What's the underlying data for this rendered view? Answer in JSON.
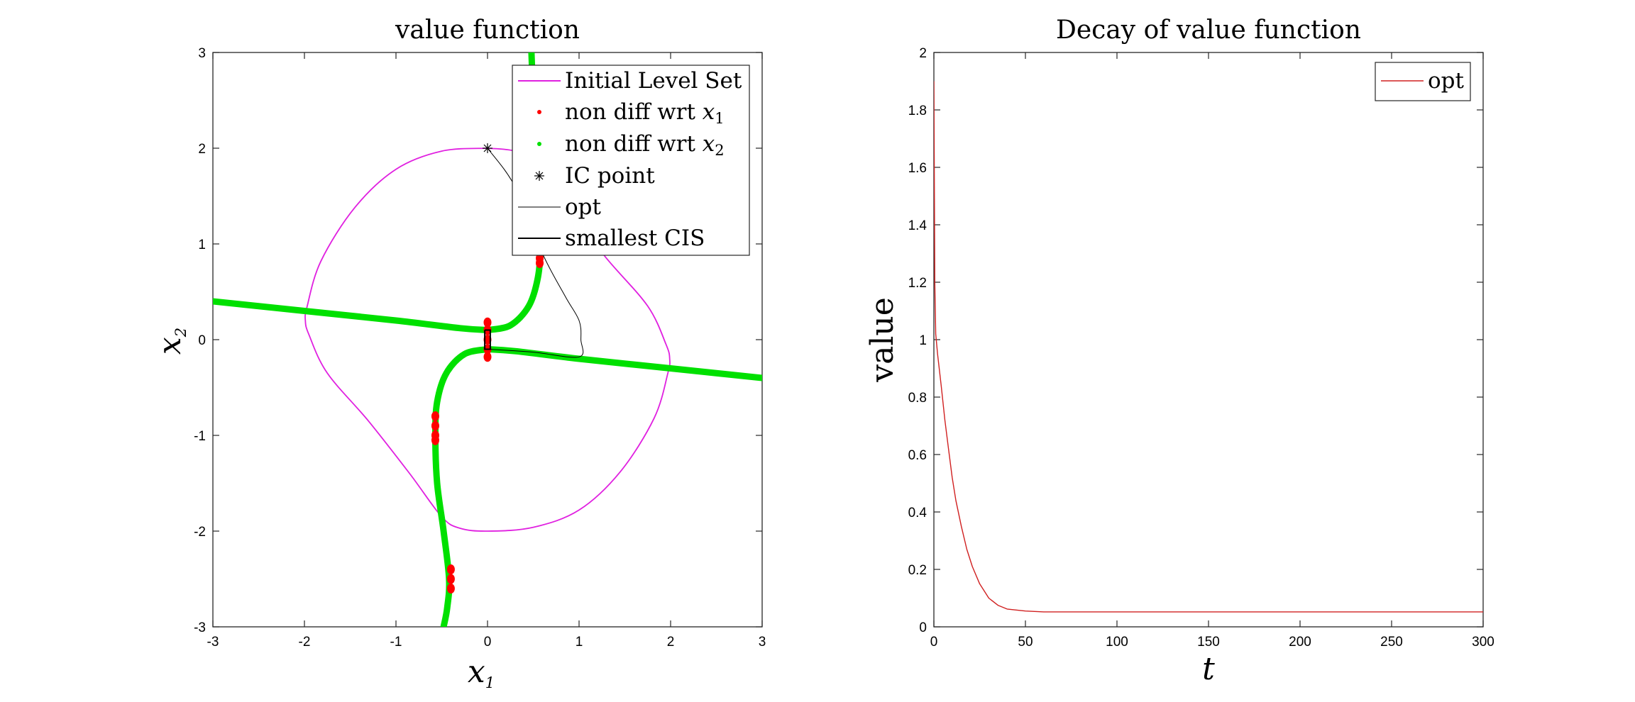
{
  "chart_data": [
    {
      "type": "line",
      "title": "value function",
      "xlabel": "x",
      "xlabel_sub": "1",
      "ylabel": "x",
      "ylabel_sub": "2",
      "xlim": [
        -3,
        3
      ],
      "ylim": [
        -3,
        3
      ],
      "xticks": [
        -3,
        -2,
        -1,
        0,
        1,
        2,
        3
      ],
      "yticks": [
        -3,
        -2,
        -1,
        0,
        1,
        2,
        3
      ],
      "legend": {
        "position": "top-right",
        "entries": [
          {
            "label": "Initial Level Set",
            "color": "#e020e0",
            "marker": "line"
          },
          {
            "label": "non diff wrt ",
            "math": "x",
            "sub": "1",
            "color": "#ff0000",
            "marker": "dot"
          },
          {
            "label": "non diff wrt ",
            "math": "x",
            "sub": "2",
            "color": "#00e000",
            "marker": "dot"
          },
          {
            "label": "IC point",
            "color": "#000000",
            "marker": "star"
          },
          {
            "label": "opt",
            "color": "#000000",
            "marker": "thin-line"
          },
          {
            "label": "smallest CIS",
            "color": "#000000",
            "marker": "line"
          }
        ]
      },
      "series": [
        {
          "name": "Initial Level Set",
          "color": "#e020e0",
          "points": [
            [
              0.0,
              2.0
            ],
            [
              -0.5,
              1.97
            ],
            [
              -1.0,
              1.78
            ],
            [
              -1.45,
              1.38
            ],
            [
              -1.82,
              0.82
            ],
            [
              -1.97,
              0.35
            ],
            [
              -1.99,
              0.2
            ],
            [
              -1.95,
              0.05
            ],
            [
              -1.75,
              -0.35
            ],
            [
              -1.3,
              -0.85
            ],
            [
              -0.85,
              -1.4
            ],
            [
              -0.5,
              -1.85
            ],
            [
              -0.3,
              -1.97
            ],
            [
              0.0,
              -2.0
            ],
            [
              0.5,
              -1.96
            ],
            [
              1.0,
              -1.78
            ],
            [
              1.45,
              -1.38
            ],
            [
              1.82,
              -0.82
            ],
            [
              1.97,
              -0.35
            ],
            [
              1.99,
              -0.2
            ],
            [
              1.95,
              -0.05
            ],
            [
              1.75,
              0.35
            ],
            [
              1.3,
              0.85
            ],
            [
              0.85,
              1.4
            ],
            [
              0.5,
              1.85
            ],
            [
              0.3,
              1.97
            ],
            [
              0.0,
              2.0
            ]
          ]
        },
        {
          "name": "non diff wrt x2 (line)",
          "color": "#00e000",
          "points": [
            [
              -3.0,
              0.4
            ],
            [
              -2.0,
              0.3
            ],
            [
              -1.0,
              0.2
            ],
            [
              -0.3,
              0.12
            ],
            [
              0.0,
              0.1
            ]
          ]
        },
        {
          "name": "non diff wrt x2 (line)",
          "color": "#00e000",
          "points": [
            [
              0.0,
              -0.1
            ],
            [
              0.3,
              -0.12
            ],
            [
              1.0,
              -0.2
            ],
            [
              2.0,
              -0.3
            ],
            [
              3.0,
              -0.4
            ]
          ]
        },
        {
          "name": "non diff wrt x2 (upper curve)",
          "color": "#00e000",
          "points": [
            [
              0.0,
              0.1
            ],
            [
              0.25,
              0.15
            ],
            [
              0.45,
              0.35
            ],
            [
              0.55,
              0.65
            ],
            [
              0.58,
              1.0
            ],
            [
              0.55,
              1.5
            ],
            [
              0.52,
              2.0
            ],
            [
              0.5,
              2.5
            ],
            [
              0.48,
              3.0
            ]
          ]
        },
        {
          "name": "non diff wrt x2 (lower curve)",
          "color": "#00e000",
          "points": [
            [
              0.0,
              -0.1
            ],
            [
              -0.25,
              -0.15
            ],
            [
              -0.45,
              -0.35
            ],
            [
              -0.55,
              -0.65
            ],
            [
              -0.57,
              -1.0
            ],
            [
              -0.55,
              -1.5
            ],
            [
              -0.48,
              -2.0
            ],
            [
              -0.42,
              -2.5
            ],
            [
              -0.44,
              -2.8
            ],
            [
              -0.48,
              -3.0
            ]
          ]
        },
        {
          "name": "non diff wrt x1",
          "color": "#ff0000",
          "points": [
            [
              0.0,
              0.18
            ],
            [
              0.0,
              0.1
            ],
            [
              0.0,
              0.0
            ],
            [
              0.0,
              -0.1
            ],
            [
              0.0,
              -0.18
            ],
            [
              -0.57,
              -0.8
            ],
            [
              -0.57,
              -0.9
            ],
            [
              -0.57,
              -1.0
            ],
            [
              -0.57,
              -1.05
            ],
            [
              -0.4,
              -2.4
            ],
            [
              -0.4,
              -2.5
            ],
            [
              -0.4,
              -2.6
            ],
            [
              0.57,
              0.8
            ],
            [
              0.57,
              0.85
            ]
          ]
        },
        {
          "name": "opt",
          "color": "#000000",
          "points": [
            [
              0.0,
              2.0
            ],
            [
              0.3,
              1.6
            ],
            [
              0.6,
              0.9
            ],
            [
              0.85,
              0.45
            ],
            [
              1.0,
              0.2
            ],
            [
              1.02,
              0.0
            ],
            [
              1.0,
              -0.18
            ],
            [
              0.5,
              -0.13
            ],
            [
              0.0,
              -0.1
            ]
          ]
        },
        {
          "name": "smallest CIS",
          "color": "#000000",
          "points": [
            [
              -0.03,
              0.1
            ],
            [
              0.03,
              0.1
            ],
            [
              0.03,
              -0.1
            ],
            [
              -0.03,
              -0.1
            ],
            [
              -0.03,
              0.1
            ]
          ]
        }
      ],
      "ic_point": [
        0.0,
        2.0
      ]
    },
    {
      "type": "line",
      "title": "Decay of value function",
      "xlabel": "t",
      "ylabel": "value",
      "xlim": [
        0,
        300
      ],
      "ylim": [
        0,
        2
      ],
      "xticks": [
        0,
        50,
        100,
        150,
        200,
        250,
        300
      ],
      "yticks": [
        0,
        0.2,
        0.4,
        0.6,
        0.8,
        1,
        1.2,
        1.4,
        1.6,
        1.8,
        2
      ],
      "legend": {
        "position": "top-right",
        "entries": [
          {
            "label": "opt",
            "color": "#d02020",
            "marker": "line"
          }
        ]
      },
      "series": [
        {
          "name": "opt",
          "color": "#d02020",
          "points": [
            [
              0,
              1.9
            ],
            [
              0.5,
              1.2
            ],
            [
              1,
              1.02
            ],
            [
              2,
              0.95
            ],
            [
              4,
              0.84
            ],
            [
              6,
              0.72
            ],
            [
              8,
              0.62
            ],
            [
              10,
              0.52
            ],
            [
              12,
              0.44
            ],
            [
              15,
              0.35
            ],
            [
              18,
              0.27
            ],
            [
              21,
              0.21
            ],
            [
              25,
              0.15
            ],
            [
              30,
              0.1
            ],
            [
              35,
              0.075
            ],
            [
              40,
              0.062
            ],
            [
              50,
              0.055
            ],
            [
              60,
              0.052
            ],
            [
              100,
              0.052
            ],
            [
              200,
              0.052
            ],
            [
              300,
              0.052
            ]
          ]
        }
      ]
    }
  ]
}
